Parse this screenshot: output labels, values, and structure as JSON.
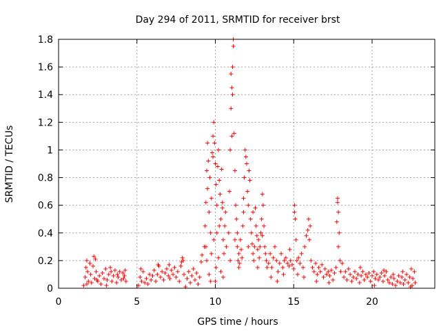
{
  "chart_data": {
    "type": "scatter",
    "title": "Day 294 of 2011, SRMTID for receiver brst",
    "xlabel": "GPS time / hours",
    "ylabel": "SRMTID / TECUs",
    "xlim": [
      0,
      24
    ],
    "ylim": [
      0,
      1.8
    ],
    "xticks": [
      0,
      5,
      10,
      15,
      20
    ],
    "xtick_labels": [
      "0",
      "5",
      "10",
      "15",
      "20"
    ],
    "yticks": [
      0,
      0.2,
      0.4,
      0.6,
      0.8,
      1.0,
      1.2,
      1.4,
      1.6,
      1.8
    ],
    "ytick_labels": [
      "0",
      "0.2",
      "0.4",
      "0.6",
      "0.8",
      "1",
      "1.2",
      "1.4",
      "1.6",
      "1.8"
    ],
    "grid": true,
    "marker": "+",
    "color": "#ff0000",
    "series": [
      {
        "name": "SRMTID",
        "points": [
          [
            1.6,
            0.02
          ],
          [
            1.7,
            0.08
          ],
          [
            1.75,
            0.15
          ],
          [
            1.8,
            0.2
          ],
          [
            1.85,
            0.12
          ],
          [
            1.9,
            0.05
          ],
          [
            2.0,
            0.18
          ],
          [
            2.05,
            0.1
          ],
          [
            2.1,
            0.04
          ],
          [
            2.2,
            0.16
          ],
          [
            2.3,
            0.07
          ],
          [
            2.35,
            0.21
          ],
          [
            2.4,
            0.12
          ],
          [
            2.5,
            0.05
          ],
          [
            2.6,
            0.09
          ],
          [
            2.7,
            0.03
          ],
          [
            2.8,
            0.11
          ],
          [
            2.9,
            0.07
          ],
          [
            3.0,
            0.14
          ],
          [
            3.1,
            0.06
          ],
          [
            3.2,
            0.1
          ],
          [
            3.3,
            0.15
          ],
          [
            3.4,
            0.05
          ],
          [
            3.5,
            0.09
          ],
          [
            3.6,
            0.13
          ],
          [
            3.7,
            0.04
          ],
          [
            3.8,
            0.08
          ],
          [
            3.9,
            0.12
          ],
          [
            4.0,
            0.06
          ],
          [
            4.1,
            0.11
          ],
          [
            4.2,
            0.09
          ],
          [
            4.3,
            0.05
          ],
          [
            1.8,
            0.03
          ],
          [
            2.25,
            0.23
          ],
          [
            2.45,
            0.06
          ],
          [
            3.05,
            0.02
          ],
          [
            3.35,
            0.12
          ],
          [
            3.75,
            0.1
          ],
          [
            4.15,
            0.07
          ],
          [
            4.25,
            0.13
          ],
          [
            5.1,
            0.02
          ],
          [
            5.2,
            0.08
          ],
          [
            5.3,
            0.05
          ],
          [
            5.4,
            0.12
          ],
          [
            5.5,
            0.04
          ],
          [
            5.6,
            0.07
          ],
          [
            5.7,
            0.03
          ],
          [
            5.8,
            0.1
          ],
          [
            5.9,
            0.06
          ],
          [
            6.0,
            0.09
          ],
          [
            6.1,
            0.13
          ],
          [
            6.2,
            0.05
          ],
          [
            6.3,
            0.1
          ],
          [
            6.4,
            0.16
          ],
          [
            6.5,
            0.08
          ],
          [
            6.6,
            0.12
          ],
          [
            6.7,
            0.06
          ],
          [
            6.8,
            0.11
          ],
          [
            6.9,
            0.14
          ],
          [
            7.0,
            0.09
          ],
          [
            7.1,
            0.07
          ],
          [
            7.2,
            0.13
          ],
          [
            7.3,
            0.1
          ],
          [
            7.4,
            0.15
          ],
          [
            7.5,
            0.08
          ],
          [
            7.6,
            0.12
          ],
          [
            7.7,
            0.05
          ],
          [
            7.8,
            0.16
          ],
          [
            7.9,
            0.22
          ],
          [
            7.95,
            0.2
          ],
          [
            8.0,
            0.1
          ],
          [
            8.1,
            0.01
          ],
          [
            8.2,
            0.07
          ],
          [
            8.3,
            0.12
          ],
          [
            8.4,
            0.04
          ],
          [
            8.5,
            0.09
          ],
          [
            8.6,
            0.14
          ],
          [
            8.7,
            0.06
          ],
          [
            8.8,
            0.11
          ],
          [
            8.9,
            0.03
          ],
          [
            9.0,
            0.08
          ],
          [
            9.1,
            0.19
          ],
          [
            9.15,
            0.24
          ],
          [
            5.25,
            0.14
          ],
          [
            6.35,
            0.17
          ],
          [
            7.05,
            0.17
          ],
          [
            7.85,
            0.19
          ],
          [
            9.3,
            0.3
          ],
          [
            9.35,
            0.45
          ],
          [
            9.4,
            0.62
          ],
          [
            9.45,
            0.85
          ],
          [
            9.5,
            0.72
          ],
          [
            9.55,
            0.92
          ],
          [
            9.6,
            0.55
          ],
          [
            9.65,
            0.8
          ],
          [
            9.7,
            0.4
          ],
          [
            9.75,
            0.65
          ],
          [
            9.8,
            0.98
          ],
          [
            9.85,
            1.1
          ],
          [
            9.9,
            1.2
          ],
          [
            9.95,
            1.05
          ],
          [
            10.0,
            0.9
          ],
          [
            10.05,
            0.75
          ],
          [
            10.1,
            0.6
          ],
          [
            10.15,
            0.88
          ],
          [
            10.2,
            1.0
          ],
          [
            10.25,
            0.78
          ],
          [
            10.3,
            0.68
          ],
          [
            10.35,
            0.5
          ],
          [
            10.4,
            0.86
          ],
          [
            10.45,
            0.58
          ],
          [
            10.5,
            0.35
          ],
          [
            10.55,
            0.25
          ],
          [
            10.6,
            0.45
          ],
          [
            10.65,
            0.55
          ],
          [
            10.7,
            0.3
          ],
          [
            9.45,
            0.2
          ],
          [
            9.6,
            0.1
          ],
          [
            9.75,
            0.25
          ],
          [
            9.9,
            0.35
          ],
          [
            10.05,
            0.15
          ],
          [
            10.2,
            0.22
          ],
          [
            10.35,
            0.12
          ],
          [
            10.5,
            0.08
          ],
          [
            9.5,
            1.05
          ],
          [
            9.85,
            0.95
          ],
          [
            10.0,
            0.05
          ],
          [
            10.1,
            0.4
          ],
          [
            9.4,
            0.3
          ],
          [
            9.7,
            0.05
          ],
          [
            10.25,
            0.45
          ],
          [
            10.45,
            0.62
          ],
          [
            10.85,
            0.4
          ],
          [
            10.9,
            0.7
          ],
          [
            10.95,
            1.0
          ],
          [
            11.0,
            1.3
          ],
          [
            11.05,
            1.45
          ],
          [
            11.1,
            1.6
          ],
          [
            11.15,
            1.8
          ],
          [
            11.2,
            1.12
          ],
          [
            11.25,
            0.85
          ],
          [
            11.3,
            0.6
          ],
          [
            11.35,
            0.5
          ],
          [
            11.4,
            0.3
          ],
          [
            11.45,
            0.2
          ],
          [
            11.5,
            0.25
          ],
          [
            11.55,
            0.18
          ],
          [
            11.6,
            0.35
          ],
          [
            11.65,
            0.28
          ],
          [
            11.7,
            0.22
          ],
          [
            11.75,
            0.45
          ],
          [
            11.8,
            0.55
          ],
          [
            11.85,
            0.8
          ],
          [
            11.9,
            1.0
          ],
          [
            11.95,
            0.95
          ],
          [
            12.0,
            0.9
          ],
          [
            12.05,
            0.7
          ],
          [
            12.1,
            0.6
          ],
          [
            12.15,
            0.85
          ],
          [
            12.2,
            0.78
          ],
          [
            12.25,
            0.5
          ],
          [
            12.3,
            0.4
          ],
          [
            12.35,
            0.32
          ],
          [
            12.4,
            0.25
          ],
          [
            12.45,
            0.2
          ],
          [
            12.5,
            0.3
          ],
          [
            12.55,
            0.58
          ],
          [
            12.6,
            0.45
          ],
          [
            12.65,
            0.38
          ],
          [
            12.7,
            0.28
          ],
          [
            12.75,
            0.35
          ],
          [
            12.8,
            0.22
          ],
          [
            12.85,
            0.3
          ],
          [
            12.9,
            0.4
          ],
          [
            12.95,
            0.5
          ],
          [
            13.0,
            0.68
          ],
          [
            13.05,
            0.6
          ],
          [
            13.1,
            0.45
          ],
          [
            13.15,
            0.3
          ],
          [
            13.2,
            0.25
          ],
          [
            13.25,
            0.2
          ],
          [
            13.3,
            0.15
          ],
          [
            11.0,
            1.55
          ],
          [
            11.1,
            1.4
          ],
          [
            11.15,
            1.75
          ],
          [
            11.05,
            1.1
          ],
          [
            11.25,
            0.35
          ],
          [
            11.5,
            0.15
          ],
          [
            11.8,
            0.65
          ],
          [
            12.1,
            0.3
          ],
          [
            12.4,
            0.55
          ],
          [
            12.7,
            0.15
          ],
          [
            13.0,
            0.38
          ],
          [
            10.95,
            0.2
          ],
          [
            11.4,
            0.4
          ],
          [
            13.4,
            0.18
          ],
          [
            13.5,
            0.25
          ],
          [
            13.6,
            0.15
          ],
          [
            13.7,
            0.22
          ],
          [
            13.8,
            0.3
          ],
          [
            13.9,
            0.2
          ],
          [
            14.0,
            0.12
          ],
          [
            14.1,
            0.18
          ],
          [
            14.2,
            0.25
          ],
          [
            14.3,
            0.15
          ],
          [
            14.4,
            0.2
          ],
          [
            14.5,
            0.22
          ],
          [
            14.6,
            0.18
          ],
          [
            14.7,
            0.16
          ],
          [
            14.8,
            0.2
          ],
          [
            14.9,
            0.17
          ],
          [
            15.0,
            0.14
          ],
          [
            15.05,
            0.6
          ],
          [
            15.1,
            0.5
          ],
          [
            15.15,
            0.35
          ],
          [
            15.2,
            0.2
          ],
          [
            15.25,
            0.1
          ],
          [
            15.3,
            0.22
          ],
          [
            15.4,
            0.18
          ],
          [
            15.5,
            0.25
          ],
          [
            15.6,
            0.15
          ],
          [
            15.7,
            0.3
          ],
          [
            15.8,
            0.38
          ],
          [
            15.9,
            0.42
          ],
          [
            15.95,
            0.5
          ],
          [
            16.0,
            0.35
          ],
          [
            16.1,
            0.2
          ],
          [
            16.2,
            0.15
          ],
          [
            16.3,
            0.12
          ],
          [
            16.4,
            0.18
          ],
          [
            16.5,
            0.1
          ],
          [
            16.6,
            0.15
          ],
          [
            16.7,
            0.12
          ],
          [
            16.8,
            0.17
          ],
          [
            16.9,
            0.08
          ],
          [
            17.0,
            0.14
          ],
          [
            17.1,
            0.1
          ],
          [
            17.2,
            0.12
          ],
          [
            17.3,
            0.09
          ],
          [
            17.4,
            0.13
          ],
          [
            17.5,
            0.06
          ],
          [
            17.6,
            0.11
          ],
          [
            17.7,
            0.15
          ],
          [
            17.75,
            0.48
          ],
          [
            17.8,
            0.62
          ],
          [
            17.85,
            0.55
          ],
          [
            17.9,
            0.4
          ],
          [
            17.95,
            0.2
          ],
          [
            18.0,
            0.12
          ],
          [
            18.1,
            0.18
          ],
          [
            18.2,
            0.08
          ],
          [
            18.3,
            0.12
          ],
          [
            18.4,
            0.06
          ],
          [
            18.5,
            0.14
          ],
          [
            13.55,
            0.08
          ],
          [
            13.95,
            0.05
          ],
          [
            14.35,
            0.1
          ],
          [
            14.75,
            0.28
          ],
          [
            15.05,
            0.55
          ],
          [
            15.65,
            0.08
          ],
          [
            16.05,
            0.45
          ],
          [
            16.45,
            0.05
          ],
          [
            17.25,
            0.04
          ],
          [
            17.8,
            0.65
          ],
          [
            17.85,
            0.3
          ],
          [
            18.6,
            0.1
          ],
          [
            18.7,
            0.05
          ],
          [
            18.8,
            0.08
          ],
          [
            18.9,
            0.12
          ],
          [
            19.0,
            0.07
          ],
          [
            19.1,
            0.1
          ],
          [
            19.2,
            0.04
          ],
          [
            19.3,
            0.09
          ],
          [
            19.4,
            0.12
          ],
          [
            19.5,
            0.06
          ],
          [
            19.6,
            0.1
          ],
          [
            19.7,
            0.08
          ],
          [
            19.8,
            0.11
          ],
          [
            19.9,
            0.05
          ],
          [
            20.0,
            0.09
          ],
          [
            20.1,
            0.12
          ],
          [
            20.2,
            0.07
          ],
          [
            20.3,
            0.1
          ],
          [
            20.4,
            0.06
          ],
          [
            20.5,
            0.08
          ],
          [
            20.6,
            0.11
          ],
          [
            20.7,
            0.05
          ],
          [
            20.8,
            0.09
          ],
          [
            20.9,
            0.12
          ],
          [
            21.0,
            0.06
          ],
          [
            21.1,
            0.04
          ],
          [
            21.2,
            0.08
          ],
          [
            21.3,
            0.03
          ],
          [
            21.4,
            0.07
          ],
          [
            21.5,
            0.02
          ],
          [
            21.6,
            0.05
          ],
          [
            21.7,
            0.09
          ],
          [
            21.8,
            0.04
          ],
          [
            21.9,
            0.08
          ],
          [
            22.0,
            0.03
          ],
          [
            22.1,
            0.06
          ],
          [
            22.2,
            0.1
          ],
          [
            22.3,
            0.04
          ],
          [
            22.4,
            0.08
          ],
          [
            22.5,
            0.14
          ],
          [
            22.55,
            0.02
          ],
          [
            22.6,
            0.07
          ],
          [
            22.7,
            0.12
          ],
          [
            22.75,
            0.04
          ],
          [
            19.25,
            0.15
          ],
          [
            20.15,
            0.02
          ],
          [
            20.75,
            0.13
          ],
          [
            21.35,
            0.1
          ],
          [
            21.95,
            0.12
          ],
          [
            22.45,
            0.01
          ]
        ]
      }
    ]
  }
}
